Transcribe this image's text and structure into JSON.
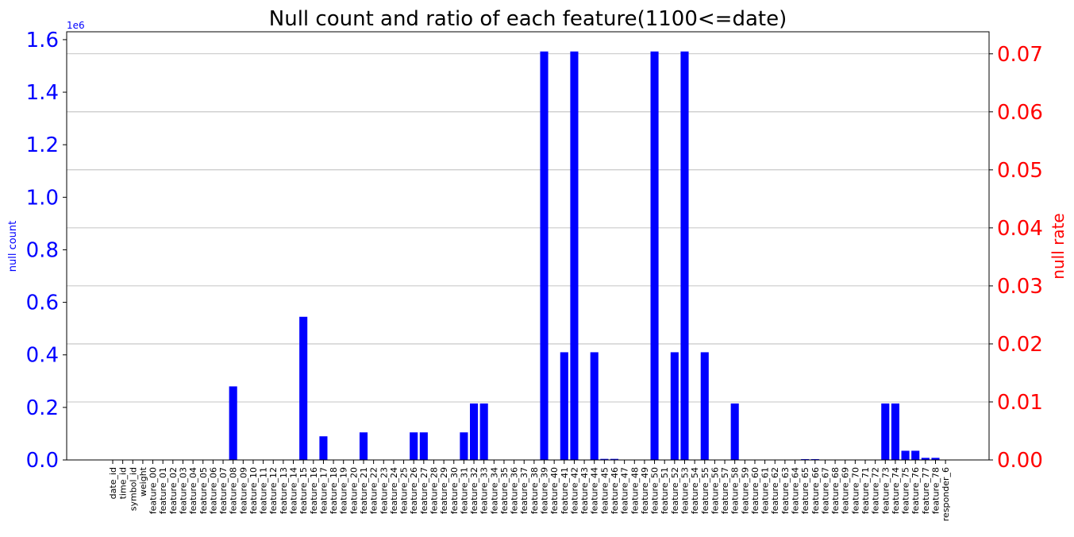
{
  "chart_data": {
    "type": "bar",
    "title": "Null count and ratio of each feature(1100<=date)",
    "ylabel_left": "null count",
    "ylabel_right": "null rate",
    "left_offset_text": "1e6",
    "left_scale": 1000000,
    "ylim_left": [
      0,
      1.63
    ],
    "ylim_right": [
      0,
      0.0738
    ],
    "left_ticks": [
      0.0,
      0.2,
      0.4,
      0.6,
      0.8,
      1.0,
      1.2,
      1.4,
      1.6
    ],
    "left_tick_labels": [
      "0.0",
      "0.2",
      "0.4",
      "0.6",
      "0.8",
      "1.0",
      "1.2",
      "1.4",
      "1.6"
    ],
    "right_ticks": [
      0.0,
      0.01,
      0.02,
      0.03,
      0.04,
      0.05,
      0.06,
      0.07
    ],
    "right_tick_labels": [
      "0.00",
      "0.01",
      "0.02",
      "0.03",
      "0.04",
      "0.05",
      "0.06",
      "0.07"
    ],
    "grid": "right-axis horizontal",
    "bar_color": "#0000ff",
    "left_axis_color": "#0000ff",
    "right_axis_color": "#ff0000",
    "categories": [
      "date_id",
      "time_id",
      "symbol_id",
      "weight",
      "feature_00",
      "feature_01",
      "feature_02",
      "feature_03",
      "feature_04",
      "feature_05",
      "feature_06",
      "feature_07",
      "feature_08",
      "feature_09",
      "feature_10",
      "feature_11",
      "feature_12",
      "feature_13",
      "feature_14",
      "feature_15",
      "feature_16",
      "feature_17",
      "feature_18",
      "feature_19",
      "feature_20",
      "feature_21",
      "feature_22",
      "feature_23",
      "feature_24",
      "feature_25",
      "feature_26",
      "feature_27",
      "feature_28",
      "feature_29",
      "feature_30",
      "feature_31",
      "feature_32",
      "feature_33",
      "feature_34",
      "feature_35",
      "feature_36",
      "feature_37",
      "feature_38",
      "feature_39",
      "feature_40",
      "feature_41",
      "feature_42",
      "feature_43",
      "feature_44",
      "feature_45",
      "feature_46",
      "feature_47",
      "feature_48",
      "feature_49",
      "feature_50",
      "feature_51",
      "feature_52",
      "feature_53",
      "feature_54",
      "feature_55",
      "feature_56",
      "feature_57",
      "feature_58",
      "feature_59",
      "feature_60",
      "feature_61",
      "feature_62",
      "feature_63",
      "feature_64",
      "feature_65",
      "feature_66",
      "feature_67",
      "feature_68",
      "feature_69",
      "feature_70",
      "feature_71",
      "feature_72",
      "feature_73",
      "feature_74",
      "feature_75",
      "feature_76",
      "feature_77",
      "feature_78",
      "responder_6"
    ],
    "values": [
      0,
      0,
      0,
      0,
      0,
      0,
      0,
      0,
      0,
      0,
      0,
      0,
      0.28,
      0,
      0,
      0,
      0,
      0,
      0,
      0.545,
      0,
      0.09,
      0,
      0,
      0,
      0.105,
      0,
      0,
      0,
      0,
      0.105,
      0.105,
      0,
      0,
      0,
      0.105,
      0.215,
      0.215,
      0,
      0,
      0,
      0,
      0,
      1.555,
      0,
      0.41,
      1.555,
      0,
      0.41,
      0.004,
      0.004,
      0,
      0,
      0,
      1.555,
      0,
      0.41,
      1.555,
      0,
      0.41,
      0,
      0,
      0.215,
      0,
      0,
      0,
      0,
      0,
      0,
      0.003,
      0.003,
      0,
      0,
      0,
      0,
      0,
      0,
      0.215,
      0.215,
      0.035,
      0.035,
      0.008,
      0.008,
      0
    ]
  }
}
